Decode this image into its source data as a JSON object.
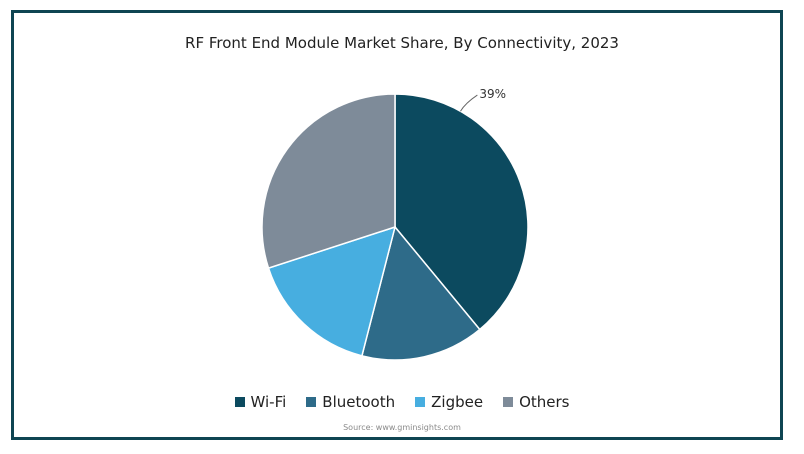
{
  "chart_data": {
    "type": "pie",
    "title": "RF Front End Module Market Share, By Connectivity, 2023",
    "categories": [
      "Wi-Fi",
      "Bluetooth",
      "Zigbee",
      "Others"
    ],
    "values": [
      39,
      15,
      16,
      30
    ],
    "colors": [
      "#0c4a5f",
      "#2e6b89",
      "#47aee0",
      "#7e8b99"
    ],
    "labels": [
      {
        "category": "Wi-Fi",
        "text": "39%"
      }
    ],
    "legend": "bottom",
    "source": "Source: www.gminsights.com"
  }
}
